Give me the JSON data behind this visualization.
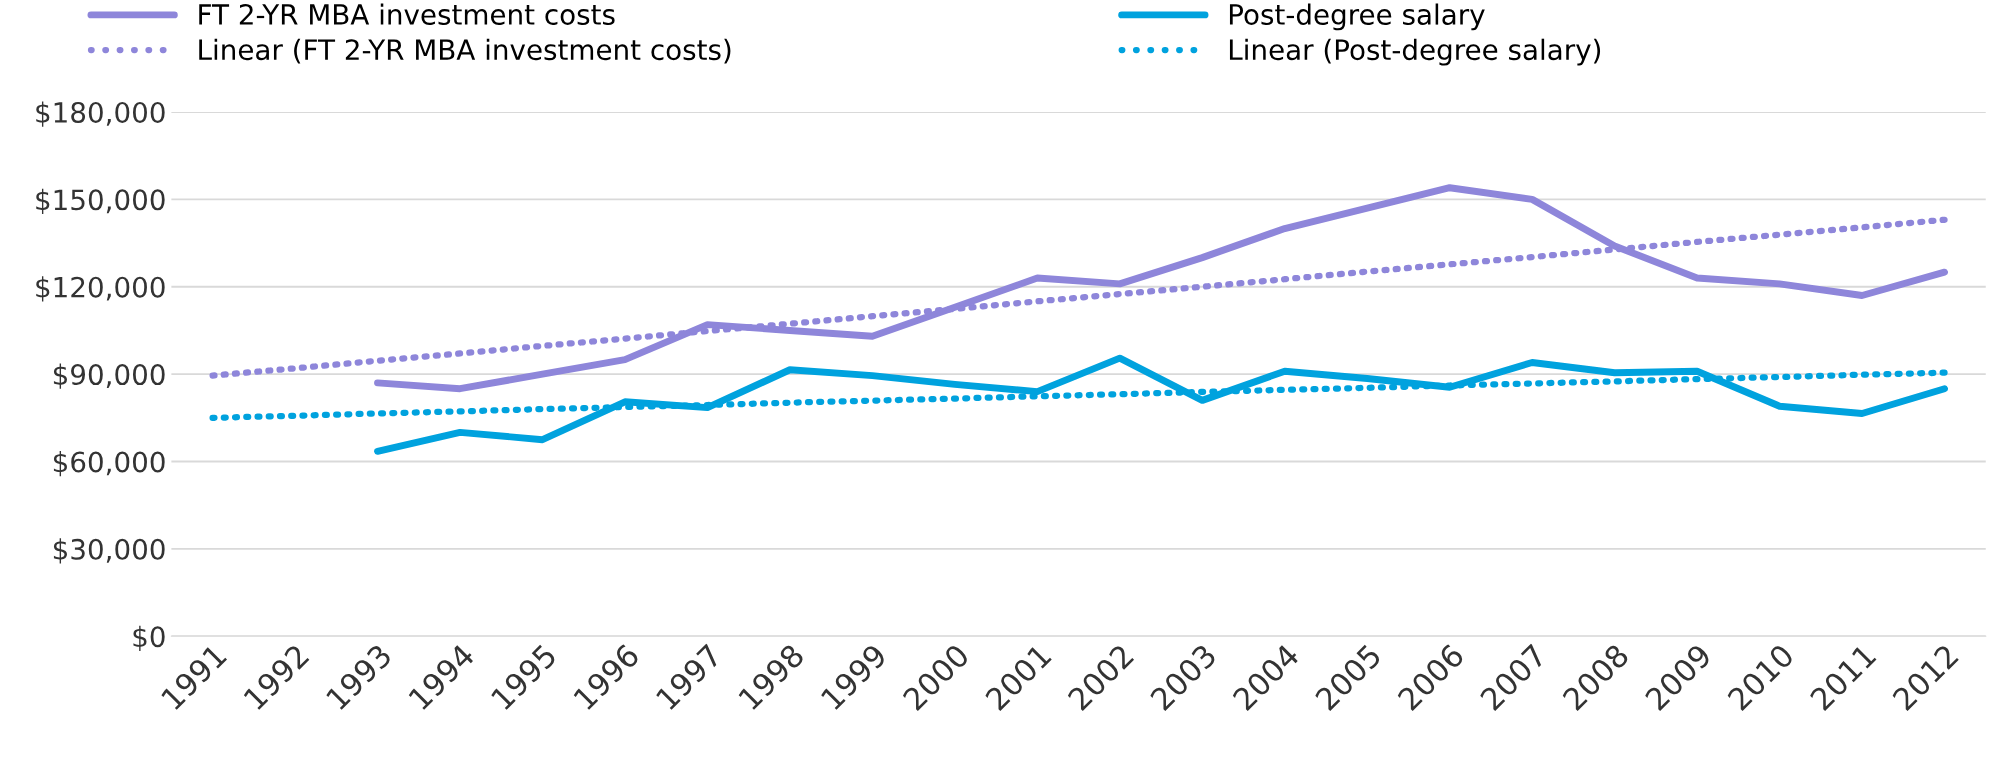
{
  "chart_data": {
    "type": "line",
    "categories": [
      "1991",
      "1992",
      "1993",
      "1994",
      "1995",
      "1996",
      "1997",
      "1998",
      "1999",
      "2000",
      "2001",
      "2002",
      "2003",
      "2004",
      "2005",
      "2006",
      "2007",
      "2008",
      "2009",
      "2010",
      "2011",
      "2012"
    ],
    "series": [
      {
        "name": "FT 2-YR MBA investment costs",
        "color": "#8e86da",
        "line_style": "solid",
        "values": [
          null,
          null,
          87000,
          85000,
          90000,
          95000,
          107000,
          105000,
          103000,
          113000,
          123000,
          121000,
          130000,
          140000,
          147000,
          154000,
          150000,
          134000,
          123000,
          121000,
          117000,
          125000
        ]
      },
      {
        "name": "Post-degree salary",
        "color": "#00a2de",
        "line_style": "solid",
        "values": [
          null,
          null,
          63500,
          70000,
          67500,
          80500,
          78500,
          91500,
          89500,
          86500,
          84000,
          95500,
          81000,
          91000,
          88500,
          85500,
          94000,
          90500,
          91000,
          79000,
          76500,
          85000
        ]
      },
      {
        "name": "Linear (FT 2-YR MBA investment costs)",
        "color": "#8e86da",
        "line_style": "dotted",
        "values": [
          89500,
          92000,
          94600,
          97100,
          99700,
          102200,
          104800,
          107300,
          109900,
          112400,
          115000,
          117500,
          120000,
          122600,
          125200,
          127700,
          130200,
          132800,
          135400,
          137900,
          140400,
          143000
        ]
      },
      {
        "name": "Linear (Post-degree salary)",
        "color": "#00a2de",
        "line_style": "dotted",
        "values": [
          75000,
          75700,
          76500,
          77200,
          78000,
          78700,
          79400,
          80200,
          80900,
          81600,
          82400,
          83100,
          83900,
          84600,
          85300,
          86100,
          86800,
          87500,
          88300,
          89000,
          89800,
          90500
        ]
      }
    ],
    "ylim": [
      0,
      180000
    ],
    "yticks": [
      {
        "value": 0,
        "label": "$0"
      },
      {
        "value": 30000,
        "label": "$30,000"
      },
      {
        "value": 60000,
        "label": "$60,000"
      },
      {
        "value": 90000,
        "label": "$90,000"
      },
      {
        "value": 120000,
        "label": "$120,000"
      },
      {
        "value": 150000,
        "label": "$150,000"
      },
      {
        "value": 180000,
        "label": "$180,000"
      }
    ],
    "grid": "y",
    "legend": "top"
  }
}
